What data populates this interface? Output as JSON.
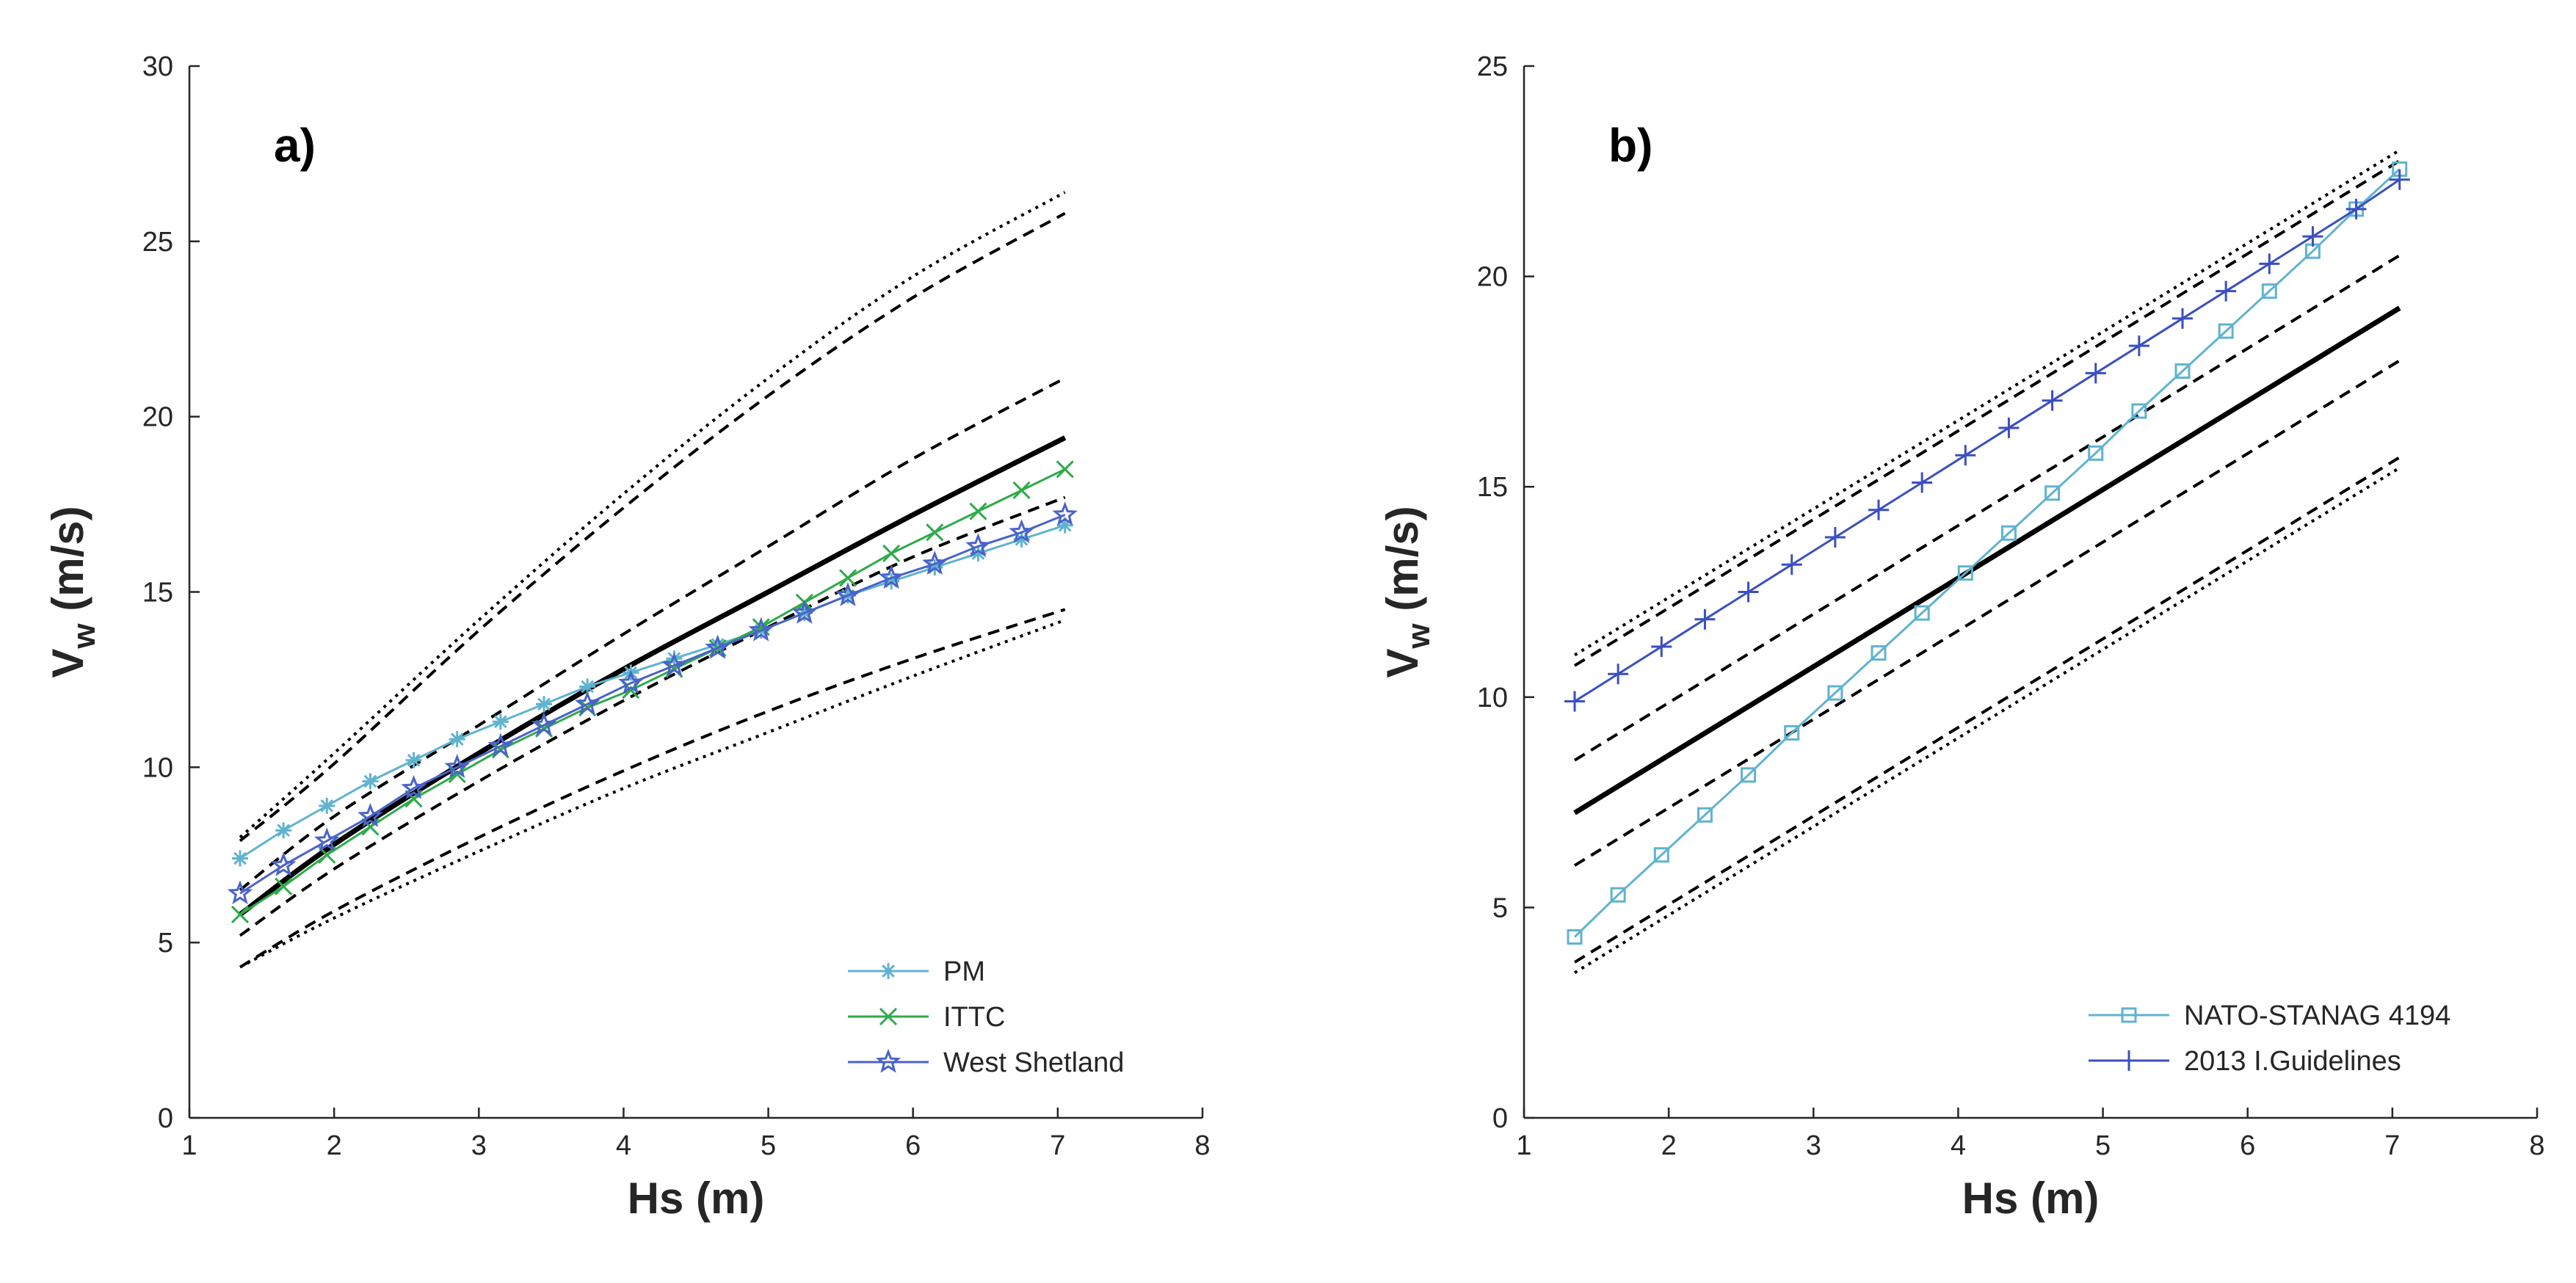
{
  "chart_data": [
    {
      "type": "line",
      "panel_label": "a)",
      "xlabel": "Hs (m)",
      "ylabel_main": "V",
      "ylabel_sub": "w",
      "ylabel_unit": " (m/s)",
      "xlim": [
        1,
        8
      ],
      "ylim": [
        0,
        30
      ],
      "xticks": [
        "1",
        "2",
        "3",
        "4",
        "5",
        "6",
        "7",
        "8"
      ],
      "yticks": [
        "0",
        "5",
        "10",
        "15",
        "20",
        "25",
        "30"
      ],
      "legend_position": "bottom-right",
      "bands": {
        "x": [
          1.35,
          2.0,
          3.0,
          4.0,
          5.0,
          6.0,
          7.05
        ],
        "central": [
          5.8,
          7.8,
          10.4,
          12.8,
          15.0,
          17.2,
          19.4
        ],
        "dashed_inner_upper": [
          6.5,
          8.6,
          11.2,
          13.8,
          16.3,
          18.8,
          21.1
        ],
        "dashed_inner_lower": [
          5.2,
          7.1,
          9.6,
          11.9,
          14.0,
          16.0,
          17.7
        ],
        "dashed_outer_upper": [
          7.9,
          10.1,
          13.9,
          17.4,
          20.6,
          23.4,
          25.8
        ],
        "dashed_outer_lower": [
          4.3,
          5.9,
          8.0,
          9.9,
          11.6,
          13.1,
          14.5
        ],
        "dotted_upper": [
          8.0,
          10.4,
          14.2,
          17.8,
          21.1,
          24.0,
          26.4
        ],
        "dotted_lower": [
          4.3,
          5.7,
          7.6,
          9.4,
          11.0,
          12.6,
          14.2
        ]
      },
      "series": [
        {
          "name": "PM",
          "marker": "asterisk",
          "color": "#5fb3cf",
          "x": [
            1.35,
            1.65,
            1.95,
            2.25,
            2.55,
            2.85,
            3.15,
            3.45,
            3.75,
            4.05,
            4.35,
            4.65,
            4.95,
            5.25,
            5.55,
            5.85,
            6.15,
            6.45,
            6.75,
            7.05
          ],
          "values": [
            7.4,
            8.2,
            8.9,
            9.6,
            10.2,
            10.8,
            11.3,
            11.8,
            12.3,
            12.7,
            13.1,
            13.5,
            13.9,
            14.4,
            14.9,
            15.3,
            15.7,
            16.1,
            16.5,
            16.9
          ]
        },
        {
          "name": "ITTC",
          "marker": "x",
          "color": "#2eaa4a",
          "x": [
            1.35,
            1.65,
            1.95,
            2.25,
            2.55,
            2.85,
            3.15,
            3.45,
            3.75,
            4.05,
            4.35,
            4.65,
            4.95,
            5.25,
            5.55,
            5.85,
            6.15,
            6.45,
            6.75,
            7.05
          ],
          "values": [
            5.8,
            6.6,
            7.5,
            8.3,
            9.1,
            9.8,
            10.5,
            11.1,
            11.7,
            12.2,
            12.8,
            13.4,
            14.0,
            14.7,
            15.4,
            16.1,
            16.7,
            17.3,
            17.9,
            18.5
          ]
        },
        {
          "name": "West Shetland",
          "marker": "star",
          "color": "#4a63c9",
          "x": [
            1.35,
            1.65,
            1.95,
            2.25,
            2.55,
            2.85,
            3.15,
            3.45,
            3.75,
            4.05,
            4.35,
            4.65,
            4.95,
            5.25,
            5.55,
            5.85,
            6.15,
            6.45,
            6.75,
            7.05
          ],
          "values": [
            6.4,
            7.2,
            7.9,
            8.6,
            9.4,
            10.0,
            10.6,
            11.2,
            11.8,
            12.4,
            12.9,
            13.4,
            13.9,
            14.4,
            14.9,
            15.4,
            15.8,
            16.3,
            16.7,
            17.2
          ]
        }
      ]
    },
    {
      "type": "line",
      "panel_label": "b)",
      "xlabel": "Hs (m)",
      "ylabel_main": "V",
      "ylabel_sub": "w",
      "ylabel_unit": " (m/s)",
      "xlim": [
        1,
        8
      ],
      "ylim": [
        0,
        25
      ],
      "xticks": [
        "1",
        "2",
        "3",
        "4",
        "5",
        "6",
        "7",
        "8"
      ],
      "yticks": [
        "0",
        "5",
        "10",
        "15",
        "20",
        "25"
      ],
      "legend_position": "bottom-right",
      "bands": {
        "x": [
          1.35,
          7.05
        ],
        "central": [
          7.25,
          19.25
        ],
        "dashed_inner_upper": [
          8.5,
          20.5
        ],
        "dashed_inner_lower": [
          6.0,
          18.0
        ],
        "dashed_outer_upper": [
          10.75,
          22.75
        ],
        "dashed_outer_lower": [
          3.7,
          15.7
        ],
        "dotted_upper": [
          11.0,
          23.0
        ],
        "dotted_lower": [
          3.45,
          15.45
        ]
      },
      "series": [
        {
          "name": "NATO-STANAG 4194",
          "marker": "square",
          "color": "#5fb3cf",
          "x": [
            1.35,
            1.65,
            1.95,
            2.25,
            2.55,
            2.85,
            3.15,
            3.45,
            3.75,
            4.05,
            4.35,
            4.65,
            4.95,
            5.25,
            5.55,
            5.85,
            6.15,
            6.45,
            6.75,
            7.05
          ],
          "values": [
            4.3,
            5.3,
            6.25,
            7.2,
            8.15,
            9.15,
            10.1,
            11.05,
            12.0,
            12.95,
            13.9,
            14.85,
            15.8,
            16.8,
            17.75,
            18.7,
            19.65,
            20.6,
            21.6,
            22.55
          ]
        },
        {
          "name": "2013 I.Guidelines",
          "marker": "plus",
          "color": "#3a4fc0",
          "x": [
            1.35,
            1.65,
            1.95,
            2.25,
            2.55,
            2.85,
            3.15,
            3.45,
            3.75,
            4.05,
            4.35,
            4.65,
            4.95,
            5.25,
            5.55,
            5.85,
            6.15,
            6.45,
            6.75,
            7.05
          ],
          "values": [
            9.9,
            10.55,
            11.2,
            11.85,
            12.5,
            13.15,
            13.8,
            14.45,
            15.1,
            15.75,
            16.4,
            17.05,
            17.7,
            18.35,
            19.0,
            19.65,
            20.3,
            20.95,
            21.6,
            22.3
          ]
        }
      ]
    }
  ]
}
